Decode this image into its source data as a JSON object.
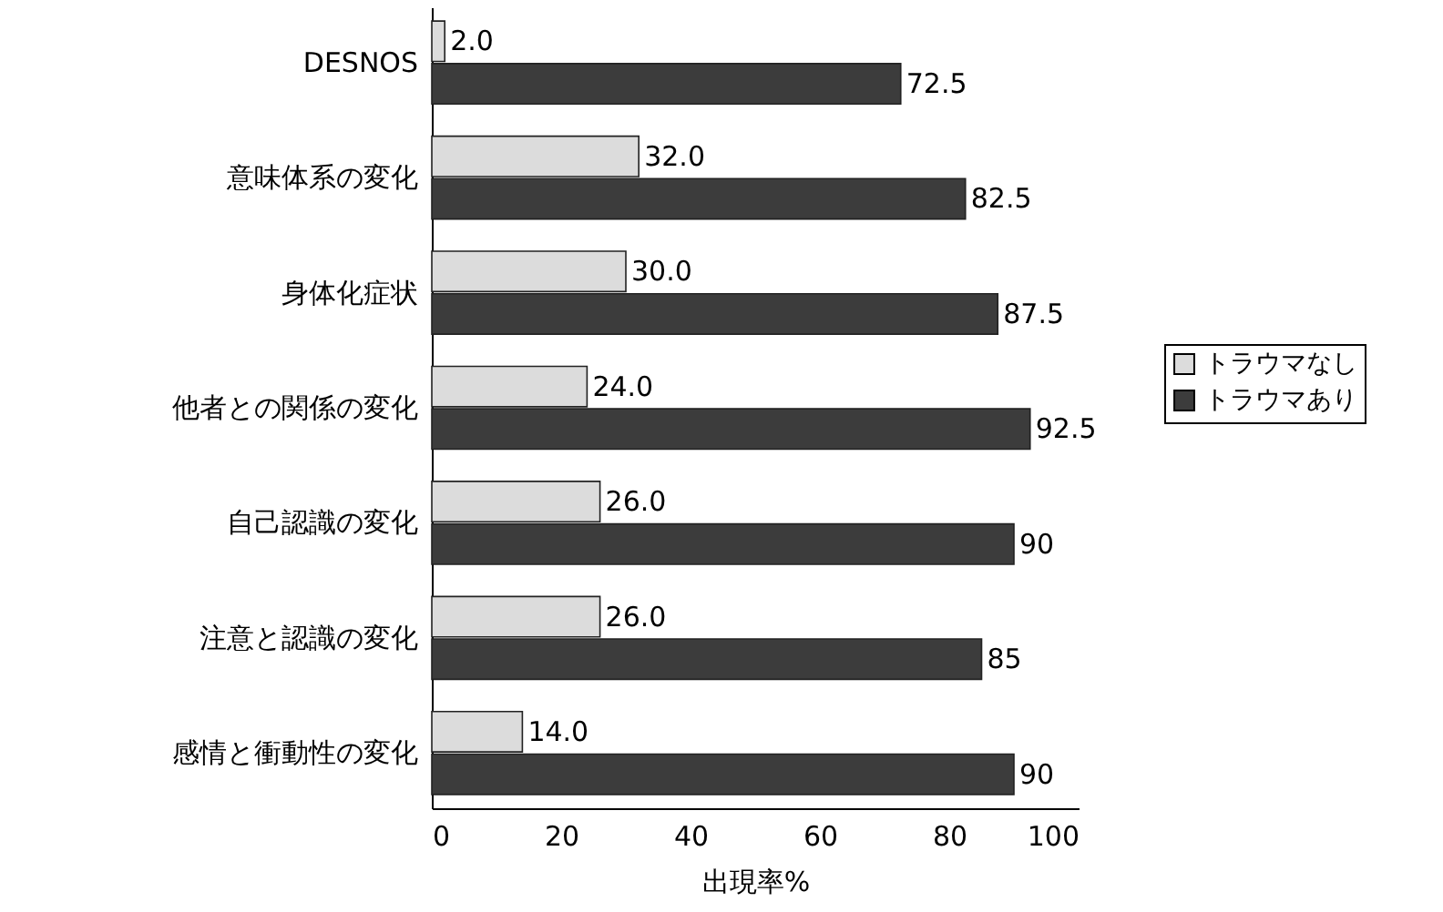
{
  "chart_data": {
    "type": "bar",
    "orientation": "horizontal",
    "categories": [
      "DESNOS",
      "意味体系の変化",
      "身体化症状",
      "他者との関係の変化",
      "自己認識の変化",
      "注意と認識の変化",
      "感情と衝動性の変化"
    ],
    "series": [
      {
        "name": "トラウマなし",
        "color": "#dcdcdc",
        "values": [
          2.0,
          32.0,
          30.0,
          24.0,
          26.0,
          26.0,
          14.0
        ],
        "value_labels": [
          "2.0",
          "32.0",
          "30.0",
          "24.0",
          "26.0",
          "26.0",
          "14.0"
        ]
      },
      {
        "name": "トラウマあり",
        "color": "#3c3c3c",
        "values": [
          72.5,
          82.5,
          87.5,
          92.5,
          90,
          85,
          90
        ],
        "value_labels": [
          "72.5",
          "82.5",
          "87.5",
          "92.5",
          "90",
          "85",
          "90"
        ]
      }
    ],
    "xlabel": "出現率%",
    "xlim": [
      0,
      100
    ],
    "xticks": [
      0,
      20,
      40,
      60,
      80,
      100
    ],
    "legend": "right",
    "grid": false
  }
}
